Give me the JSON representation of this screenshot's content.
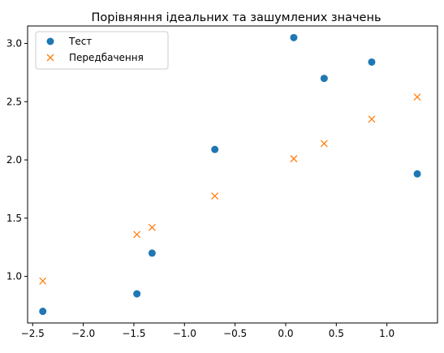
{
  "chart_data": {
    "type": "scatter",
    "title": "Порівняння ідеальних та зашумлених значень",
    "xlabel": "",
    "ylabel": "",
    "xlim": [
      -2.55,
      1.5
    ],
    "ylim": [
      0.6,
      3.15
    ],
    "x_ticks": [
      -2.5,
      -2.0,
      -1.5,
      -1.0,
      -0.5,
      0.0,
      0.5,
      1.0
    ],
    "x_tick_labels": [
      "−2.5",
      "−2.0",
      "−1.5",
      "−1.0",
      "−0.5",
      "0.0",
      "0.5",
      "1.0"
    ],
    "y_ticks": [
      1.0,
      1.5,
      2.0,
      2.5,
      3.0
    ],
    "y_tick_labels": [
      "1.0",
      "1.5",
      "2.0",
      "2.5",
      "3.0"
    ],
    "grid": false,
    "legend_position": "top-left",
    "series": [
      {
        "name": "Тест",
        "marker": "circle",
        "color": "#1f77b4",
        "x": [
          -2.4,
          -1.47,
          -1.32,
          -0.7,
          0.08,
          0.38,
          0.85,
          1.3
        ],
        "y": [
          0.7,
          0.85,
          1.2,
          2.09,
          3.05,
          2.7,
          2.84,
          1.88
        ]
      },
      {
        "name": "Передбачення",
        "marker": "x",
        "color": "#ff7f0e",
        "x": [
          -2.4,
          -1.47,
          -1.32,
          -0.7,
          0.08,
          0.38,
          0.85,
          1.3
        ],
        "y": [
          0.96,
          1.36,
          1.42,
          1.69,
          2.01,
          2.14,
          2.35,
          2.54
        ]
      }
    ]
  }
}
